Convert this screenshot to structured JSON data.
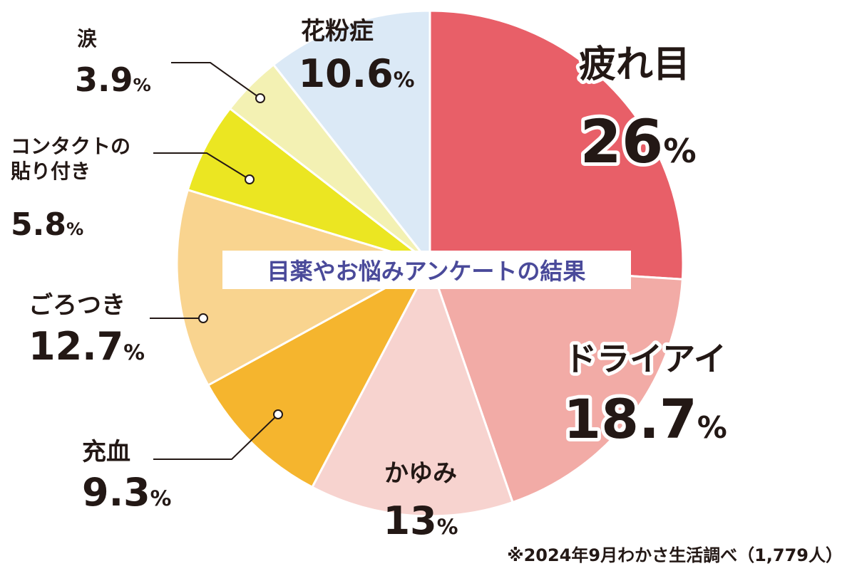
{
  "chart_data": {
    "type": "pie",
    "title": "目薬やお悩みアンケートの結果",
    "note": "※2024年9月わかさ生活調べ（1,779人）",
    "categories": [
      "疲れ目",
      "ドライアイ",
      "かゆみ",
      "充血",
      "ごろつき",
      "コンタクトの貼り付き",
      "涙",
      "花粉症"
    ],
    "values": [
      26,
      18.7,
      13,
      9.3,
      12.7,
      5.8,
      3.9,
      10.6
    ],
    "value_labels": [
      "26%",
      "18.7%",
      "13%",
      "9.3%",
      "12.7%",
      "5.8%",
      "3.9%",
      "10.6%"
    ],
    "colors": [
      "#e85f68",
      "#f2aba6",
      "#f7d3cf",
      "#f5b52e",
      "#f9d48f",
      "#ebe622",
      "#f3f1b3",
      "#dbe9f6"
    ]
  }
}
